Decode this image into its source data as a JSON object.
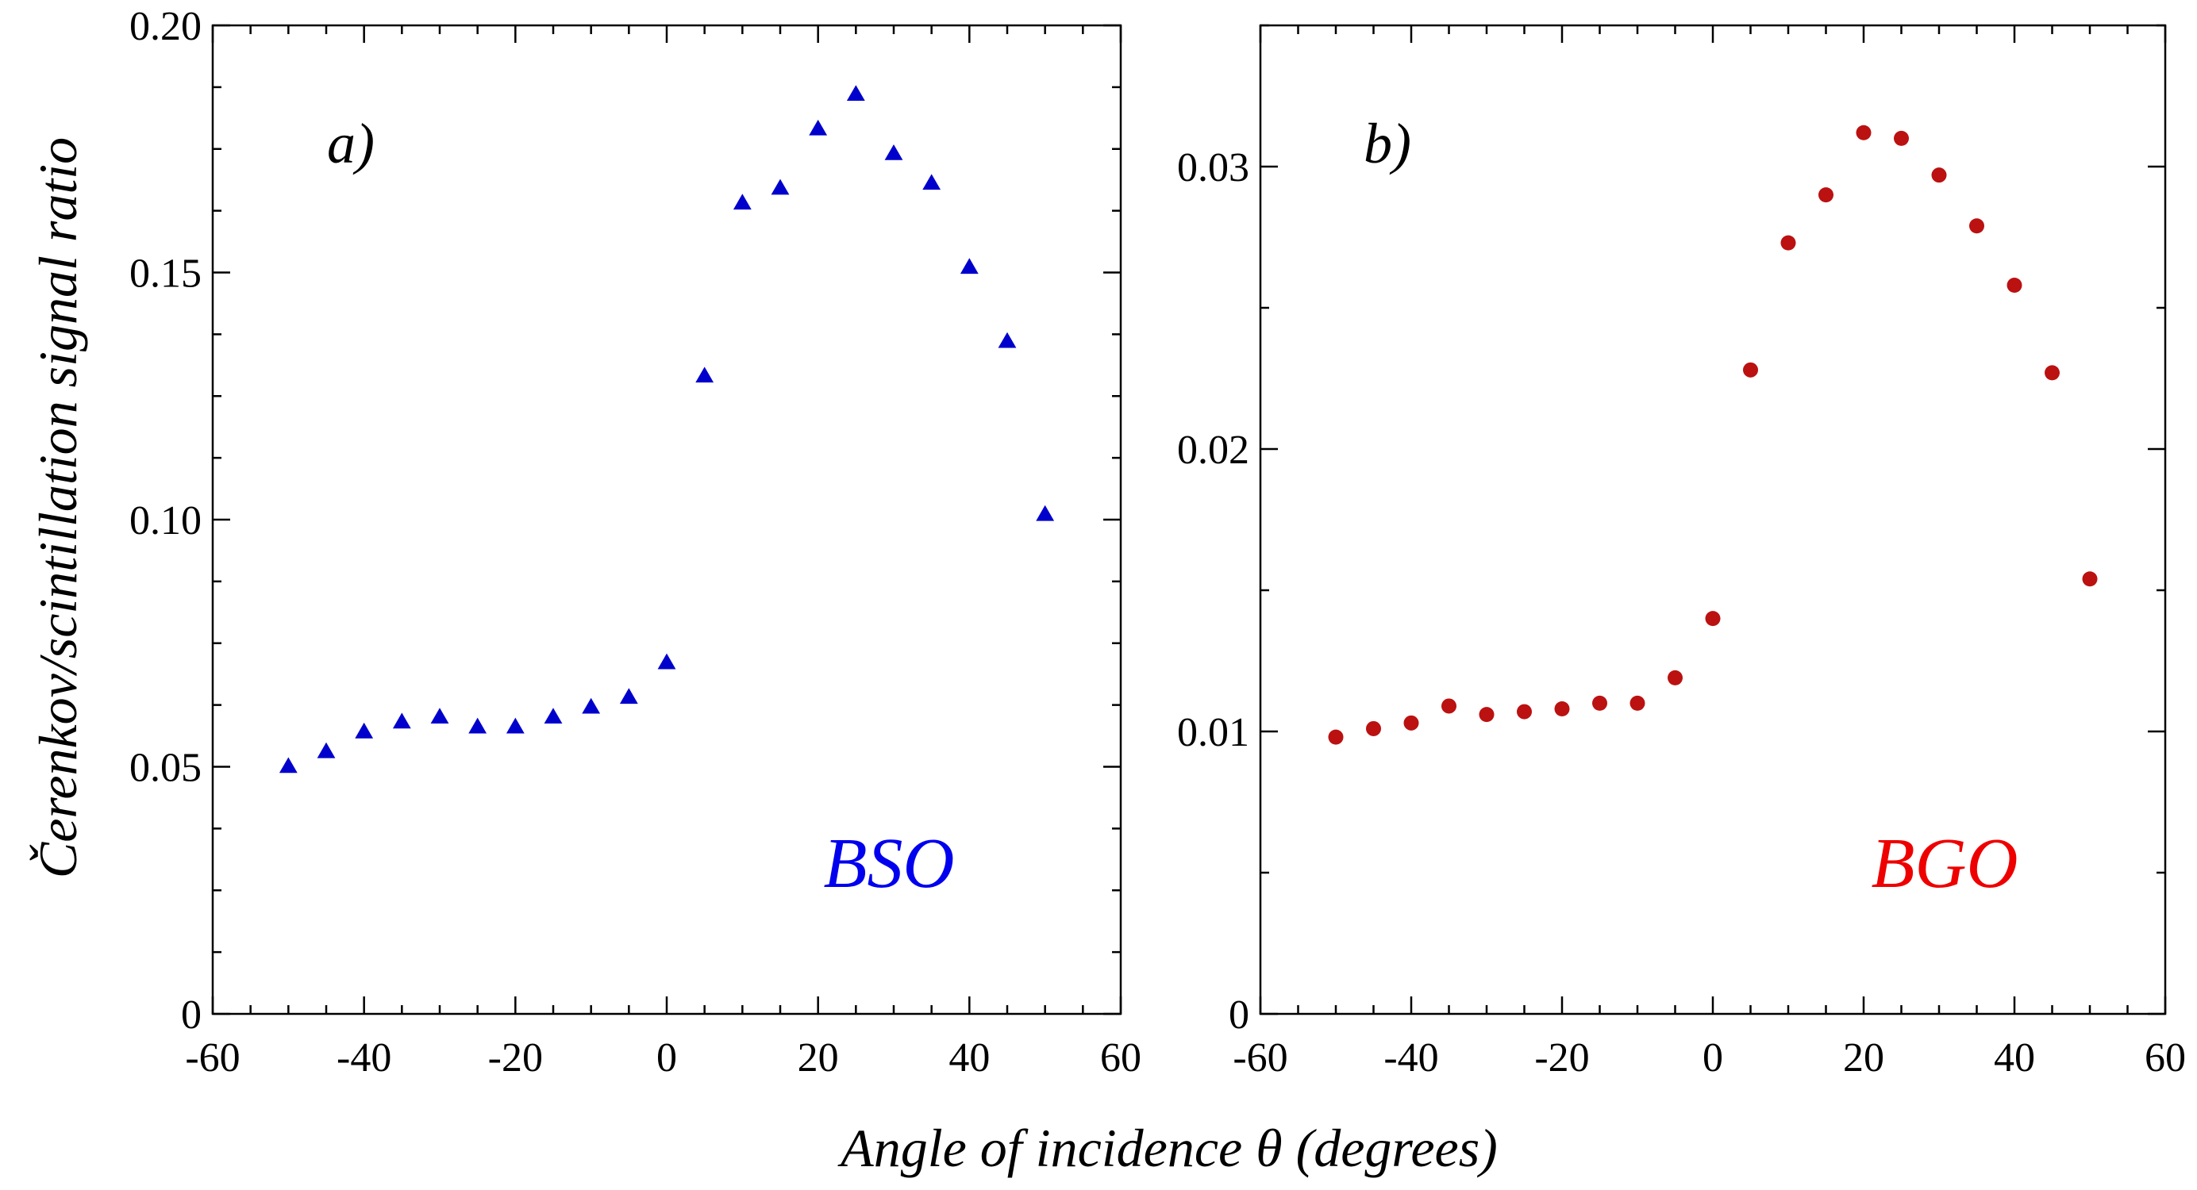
{
  "chart_data": [
    {
      "type": "scatter",
      "panel_label": "a)",
      "material": "BSO",
      "ylabel": "Čerenkov/scintillation signal ratio",
      "xlim": [
        -60,
        60
      ],
      "ylim": [
        0,
        0.2
      ],
      "xticks": [
        "-60",
        "-40",
        "-20",
        "0",
        "20",
        "40",
        "60"
      ],
      "yticks": [
        "0",
        "0.05",
        "0.10",
        "0.15",
        "0.20"
      ],
      "marker": "triangle",
      "color": "#0000cc",
      "material_color": "#0000ee",
      "grid": false,
      "series": [
        {
          "x": [
            -50,
            -45,
            -40,
            -35,
            -30,
            -25,
            -20,
            -15,
            -10,
            -5,
            0,
            5,
            10,
            15,
            20,
            25,
            30,
            35,
            40,
            45,
            50
          ],
          "y": [
            0.05,
            0.053,
            0.057,
            0.059,
            0.06,
            0.058,
            0.058,
            0.06,
            0.062,
            0.064,
            0.071,
            0.129,
            0.164,
            0.167,
            0.179,
            0.186,
            0.174,
            0.168,
            0.151,
            0.136,
            0.101
          ]
        }
      ]
    },
    {
      "type": "scatter",
      "panel_label": "b)",
      "material": "BGO",
      "xlim": [
        -60,
        60
      ],
      "ylim": [
        0,
        0.035
      ],
      "xticks": [
        "-60",
        "-40",
        "-20",
        "0",
        "20",
        "40",
        "60"
      ],
      "yticks": [
        "0",
        "0.01",
        "0.02",
        "0.03"
      ],
      "marker": "circle",
      "color": "#bb1111",
      "material_color": "#ee0000",
      "grid": false,
      "series": [
        {
          "x": [
            -50,
            -45,
            -40,
            -35,
            -30,
            -25,
            -20,
            -15,
            -10,
            -5,
            0,
            5,
            10,
            15,
            20,
            25,
            30,
            35,
            40,
            45,
            50
          ],
          "y": [
            0.0098,
            0.0101,
            0.0103,
            0.0109,
            0.0106,
            0.0107,
            0.0108,
            0.011,
            0.011,
            0.0119,
            0.014,
            0.0228,
            0.0273,
            0.029,
            0.0312,
            0.031,
            0.0297,
            0.0279,
            0.0258,
            0.0227,
            0.0154
          ]
        }
      ]
    }
  ],
  "xlabel": "Angle of incidence θ (degrees)"
}
